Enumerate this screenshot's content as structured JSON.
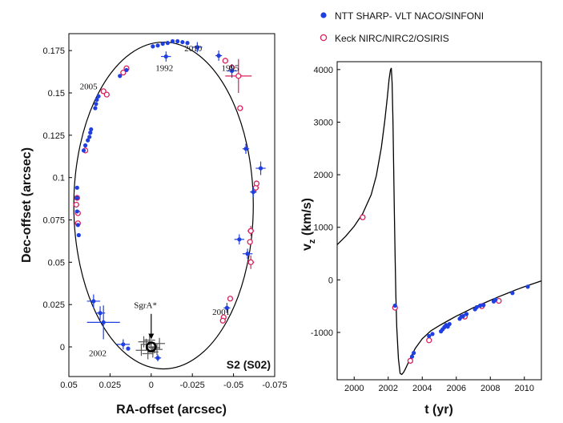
{
  "colors": {
    "ntt": "#1f3fe0",
    "keck": "#d8225a",
    "sgr": "#555555",
    "curve": "#000000"
  },
  "legend": [
    {
      "label": "NTT SHARP- VLT NACO/SINFONI",
      "marker": "filled-circle"
    },
    {
      "label": "Keck NIRC/NIRC2/OSIRIS",
      "marker": "open-circle"
    }
  ],
  "chart_data": [
    {
      "type": "scatter",
      "title": "",
      "panel_label": "S2 (S02)",
      "xlabel": "RA-offset (arcsec)",
      "ylabel": "Dec-offset (arcsec)",
      "xlim": [
        0.05,
        -0.075
      ],
      "ylim": [
        -0.0175,
        0.185
      ],
      "xticks": [
        0.05,
        0.025,
        0,
        -0.025,
        -0.05,
        -0.075
      ],
      "xtick_labels": [
        "0.05",
        "0.025",
        "0",
        "-0.025",
        "-0.05",
        "-0.075"
      ],
      "yticks": [
        0,
        0.025,
        0.05,
        0.075,
        0.1,
        0.125,
        0.15,
        0.175
      ],
      "ytick_labels": [
        "0",
        "0.025",
        "0.05",
        "0.075",
        "0.1",
        "0.125",
        "0.15",
        "0.175"
      ],
      "orbit": {
        "center": [
          -0.0075,
          0.0835
        ],
        "semi_axis_ra": 0.0545,
        "semi_axis_dec": 0.0965
      },
      "annotations": [
        {
          "text": "1992",
          "x": -0.008,
          "y": 0.163
        },
        {
          "text": "1995",
          "x": -0.048,
          "y": 0.163
        },
        {
          "text": "2010",
          "x": -0.0255,
          "y": 0.1745
        },
        {
          "text": "2005",
          "x": 0.038,
          "y": 0.152
        },
        {
          "text": "2001",
          "x": -0.0425,
          "y": 0.019
        },
        {
          "text": "2002",
          "x": 0.0325,
          "y": -0.0055
        },
        {
          "text": "SgrA*",
          "x": 0.0035,
          "y": 0.023
        }
      ],
      "series": [
        {
          "name": "NTT SHARP- VLT NACO/SINFONI",
          "points": [
            {
              "x": -0.009,
              "y": 0.1715,
              "ex": 0.003,
              "ey": 0.003
            },
            {
              "x": -0.001,
              "y": 0.1775
            },
            {
              "x": -0.004,
              "y": 0.178
            },
            {
              "x": -0.007,
              "y": 0.179
            },
            {
              "x": -0.01,
              "y": 0.1795
            },
            {
              "x": -0.013,
              "y": 0.1805
            },
            {
              "x": -0.016,
              "y": 0.1805
            },
            {
              "x": -0.019,
              "y": 0.18
            },
            {
              "x": -0.022,
              "y": 0.1795
            },
            {
              "x": -0.028,
              "y": 0.177,
              "ex": 0.003,
              "ey": 0.003
            },
            {
              "x": -0.041,
              "y": 0.172,
              "ex": 0.002,
              "ey": 0.003
            },
            {
              "x": -0.049,
              "y": 0.163,
              "ex": 0.003,
              "ey": 0.004
            },
            {
              "x": 0.019,
              "y": 0.16
            },
            {
              "x": 0.015,
              "y": 0.1635
            },
            {
              "x": 0.034,
              "y": 0.141
            },
            {
              "x": 0.0335,
              "y": 0.1435
            },
            {
              "x": 0.033,
              "y": 0.146
            },
            {
              "x": 0.032,
              "y": 0.148
            },
            {
              "x": 0.041,
              "y": 0.116
            },
            {
              "x": 0.04,
              "y": 0.119
            },
            {
              "x": 0.0385,
              "y": 0.122
            },
            {
              "x": 0.0375,
              "y": 0.124
            },
            {
              "x": 0.037,
              "y": 0.1265
            },
            {
              "x": 0.0365,
              "y": 0.1285
            },
            {
              "x": 0.044,
              "y": 0.066
            },
            {
              "x": 0.0445,
              "y": 0.072
            },
            {
              "x": 0.045,
              "y": 0.08
            },
            {
              "x": 0.045,
              "y": 0.088
            },
            {
              "x": 0.045,
              "y": 0.094
            },
            {
              "x": -0.0575,
              "y": 0.117,
              "ex": 0.002,
              "ey": 0.003
            },
            {
              "x": -0.062,
              "y": 0.0915,
              "ex": 0.002,
              "ey": 0.003
            },
            {
              "x": -0.0665,
              "y": 0.1055,
              "ex": 0.003,
              "ey": 0.004
            },
            {
              "x": -0.0535,
              "y": 0.0635,
              "ex": 0.003,
              "ey": 0.003
            },
            {
              "x": -0.0585,
              "y": 0.055,
              "ex": 0.003,
              "ey": 0.003
            },
            {
              "x": -0.046,
              "y": 0.023,
              "ex": 0.002,
              "ey": 0.003
            },
            {
              "x": 0.035,
              "y": 0.027,
              "ex": 0.004,
              "ey": 0.004
            },
            {
              "x": 0.031,
              "y": 0.02,
              "ex": 0.003,
              "ey": 0.004
            },
            {
              "x": 0.029,
              "y": 0.0145,
              "ex": 0.01,
              "ey": 0.01
            },
            {
              "x": 0.017,
              "y": 0.0015,
              "ex": 0.004,
              "ey": 0.003
            },
            {
              "x": 0.014,
              "y": -0.001
            },
            {
              "x": -0.004,
              "y": -0.0065,
              "ex": 0.002,
              "ey": 0.002
            }
          ]
        },
        {
          "name": "Keck NIRC/NIRC2/OSIRIS",
          "points": [
            {
              "x": 0.017,
              "y": 0.162
            },
            {
              "x": 0.015,
              "y": 0.1645
            },
            {
              "x": -0.045,
              "y": 0.169
            },
            {
              "x": -0.049,
              "y": 0.165
            },
            {
              "x": -0.053,
              "y": 0.16,
              "ex": 0.008,
              "ey": 0.01
            },
            {
              "x": -0.054,
              "y": 0.141
            },
            {
              "x": 0.029,
              "y": 0.151
            },
            {
              "x": 0.027,
              "y": 0.149
            },
            {
              "x": 0.04,
              "y": 0.116
            },
            {
              "x": 0.045,
              "y": 0.088
            },
            {
              "x": 0.0455,
              "y": 0.084
            },
            {
              "x": 0.0445,
              "y": 0.079
            },
            {
              "x": 0.0445,
              "y": 0.073
            },
            {
              "x": -0.0635,
              "y": 0.094,
              "ex": 0.002,
              "ey": 0.003
            },
            {
              "x": -0.064,
              "y": 0.0965
            },
            {
              "x": -0.0605,
              "y": 0.0685,
              "ex": 0.002,
              "ey": 0.003
            },
            {
              "x": -0.06,
              "y": 0.062
            },
            {
              "x": -0.0605,
              "y": 0.05,
              "ex": 0.002,
              "ey": 0.004
            },
            {
              "x": -0.048,
              "y": 0.0285
            },
            {
              "x": -0.044,
              "y": 0.0175
            },
            {
              "x": -0.0435,
              "y": 0.0155
            }
          ]
        }
      ],
      "sgra_points": [
        {
          "x": 0.0,
          "y": 0.0
        },
        {
          "x": 0.003,
          "y": 0.0015
        },
        {
          "x": -0.002,
          "y": -0.0005
        },
        {
          "x": 0.006,
          "y": -0.002
        },
        {
          "x": -0.005,
          "y": 0.002
        },
        {
          "x": 0.001,
          "y": 0.004
        },
        {
          "x": -0.001,
          "y": -0.003
        },
        {
          "x": 0.0045,
          "y": 0.003
        },
        {
          "x": -0.0035,
          "y": -0.0015
        },
        {
          "x": 0.002,
          "y": -0.004
        }
      ]
    },
    {
      "type": "line",
      "title": "",
      "xlabel": "t (yr)",
      "ylabel_main": "v",
      "ylabel_sub": "z",
      "ylabel_unit": " (km/s)",
      "xlim": [
        1999,
        2011
      ],
      "ylim": [
        -1900,
        4150
      ],
      "xticks": [
        2000,
        2002,
        2004,
        2006,
        2008,
        2010
      ],
      "xtick_labels": [
        "2000",
        "2002",
        "2004",
        "2006",
        "2008",
        "2010"
      ],
      "yticks": [
        -1000,
        0,
        1000,
        2000,
        3000,
        4000
      ],
      "ytick_labels": [
        "-1000",
        "0",
        "1000",
        "2000",
        "3000",
        "4000"
      ],
      "model_curve": {
        "x": [
          1999.0,
          1999.5,
          2000.0,
          2000.5,
          2001.0,
          2001.3,
          2001.6,
          2001.8,
          2001.95,
          2002.05,
          2002.13,
          2002.18,
          2002.23,
          2002.28,
          2002.32,
          2002.36,
          2002.4,
          2002.45,
          2002.5,
          2002.6,
          2002.7,
          2002.8,
          2002.9,
          2003.0,
          2003.2,
          2003.4,
          2003.6,
          2004.0,
          2004.5,
          2005.0,
          2005.5,
          2006.0,
          2006.5,
          2007.0,
          2007.5,
          2008.0,
          2008.5,
          2009.0,
          2009.5,
          2010.0,
          2010.5,
          2011.0
        ],
        "y": [
          670,
          830,
          1020,
          1260,
          1620,
          1980,
          2520,
          3030,
          3480,
          3810,
          3990,
          4030,
          3750,
          3000,
          2200,
          1300,
          500,
          -300,
          -900,
          -1500,
          -1780,
          -1800,
          -1760,
          -1700,
          -1560,
          -1420,
          -1300,
          -1120,
          -970,
          -870,
          -780,
          -690,
          -610,
          -530,
          -460,
          -390,
          -320,
          -255,
          -190,
          -130,
          -75,
          -20
        ]
      },
      "series": [
        {
          "name": "NTT SHARP- VLT NACO/SINFONI",
          "points": [
            {
              "x": 2002.4,
              "y": -490
            },
            {
              "x": 2003.4,
              "y": -1460
            },
            {
              "x": 2003.5,
              "y": -1390
            },
            {
              "x": 2004.4,
              "y": -1070
            },
            {
              "x": 2004.6,
              "y": -1030
            },
            {
              "x": 2005.1,
              "y": -980
            },
            {
              "x": 2005.2,
              "y": -940
            },
            {
              "x": 2005.3,
              "y": -900
            },
            {
              "x": 2005.4,
              "y": -860
            },
            {
              "x": 2005.5,
              "y": -890
            },
            {
              "x": 2005.6,
              "y": -840
            },
            {
              "x": 2006.2,
              "y": -740
            },
            {
              "x": 2006.3,
              "y": -700
            },
            {
              "x": 2006.4,
              "y": -690
            },
            {
              "x": 2006.6,
              "y": -650
            },
            {
              "x": 2007.1,
              "y": -560
            },
            {
              "x": 2007.2,
              "y": -520
            },
            {
              "x": 2007.4,
              "y": -490
            },
            {
              "x": 2007.6,
              "y": -480
            },
            {
              "x": 2008.2,
              "y": -410
            },
            {
              "x": 2008.3,
              "y": -380
            },
            {
              "x": 2009.3,
              "y": -250
            },
            {
              "x": 2010.2,
              "y": -130
            }
          ]
        },
        {
          "name": "Keck NIRC/NIRC2/OSIRIS",
          "points": [
            {
              "x": 2000.5,
              "y": 1190
            },
            {
              "x": 2002.4,
              "y": -530
            },
            {
              "x": 2003.3,
              "y": -1540
            },
            {
              "x": 2004.4,
              "y": -1150
            },
            {
              "x": 2006.5,
              "y": -700
            },
            {
              "x": 2007.5,
              "y": -500
            },
            {
              "x": 2008.5,
              "y": -400
            }
          ]
        }
      ]
    }
  ]
}
